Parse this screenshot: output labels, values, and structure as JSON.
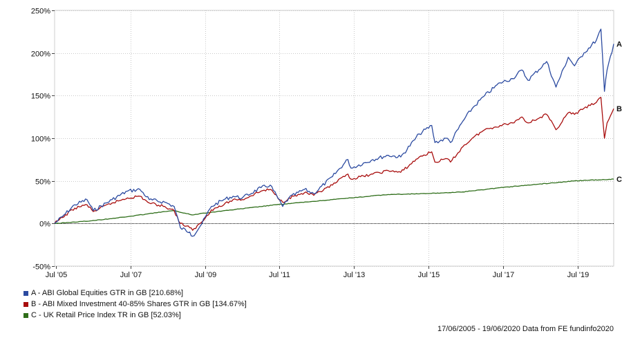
{
  "chart_data": {
    "type": "line",
    "x_range": [
      "2005-06-17",
      "2020-06-19"
    ],
    "ylim": [
      -50,
      250
    ],
    "y_ticks": [
      "250%",
      "200%",
      "150%",
      "100%",
      "50%",
      "0%",
      "-50%"
    ],
    "y_tick_values": [
      250,
      200,
      150,
      100,
      50,
      0,
      -50
    ],
    "x_tick_labels": [
      "Jul '05",
      "Jul '07",
      "Jul '09",
      "Jul '11",
      "Jul '13",
      "Jul '15",
      "Jul '17",
      "Jul '19"
    ],
    "x_tick_dates": [
      "2005-07-01",
      "2007-07-01",
      "2009-07-01",
      "2011-07-01",
      "2013-07-01",
      "2015-07-01",
      "2017-07-01",
      "2019-07-01"
    ],
    "grid": true,
    "series": [
      {
        "name": "A - ABI Global Equities GTR in GB [210.68%]",
        "end_label": "A",
        "color": "#2b4aa0",
        "x": [
          "2005-06-17",
          "2005-09-01",
          "2006-01-01",
          "2006-05-01",
          "2006-07-01",
          "2007-01-01",
          "2007-06-01",
          "2007-10-01",
          "2008-01-01",
          "2008-06-01",
          "2008-09-01",
          "2008-11-01",
          "2009-02-01",
          "2009-03-01",
          "2009-06-01",
          "2009-09-01",
          "2010-01-01",
          "2010-04-01",
          "2010-07-01",
          "2011-01-01",
          "2011-04-01",
          "2011-08-01",
          "2011-10-01",
          "2012-03-01",
          "2012-06-01",
          "2012-12-01",
          "2013-05-01",
          "2013-06-01",
          "2014-01-01",
          "2014-06-01",
          "2014-10-01",
          "2015-04-01",
          "2015-08-01",
          "2015-09-01",
          "2016-01-01",
          "2016-02-01",
          "2016-06-01",
          "2016-09-01",
          "2017-01-01",
          "2017-06-01",
          "2017-10-01",
          "2018-01-01",
          "2018-03-01",
          "2018-09-01",
          "2018-12-01",
          "2019-04-01",
          "2019-06-01",
          "2019-09-01",
          "2020-01-01",
          "2020-02-15",
          "2020-03-20",
          "2020-04-15",
          "2020-06-19"
        ],
        "values": [
          0,
          8,
          22,
          28,
          15,
          28,
          38,
          40,
          28,
          25,
          20,
          -5,
          -10,
          -15,
          0,
          20,
          28,
          32,
          30,
          42,
          45,
          20,
          30,
          40,
          35,
          55,
          75,
          65,
          75,
          80,
          78,
          105,
          115,
          95,
          100,
          95,
          120,
          135,
          150,
          165,
          170,
          180,
          168,
          190,
          160,
          195,
          185,
          200,
          215,
          228,
          155,
          180,
          210.68
        ]
      },
      {
        "name": "B - ABI Mixed Investment 40-85% Shares GTR in GB [134.67%]",
        "end_label": "B",
        "color": "#a80d0d",
        "x": [
          "2005-06-17",
          "2005-09-01",
          "2006-01-01",
          "2006-05-01",
          "2006-07-01",
          "2007-01-01",
          "2007-06-01",
          "2007-10-01",
          "2008-01-01",
          "2008-06-01",
          "2008-09-01",
          "2008-11-01",
          "2009-02-01",
          "2009-03-01",
          "2009-06-01",
          "2009-09-01",
          "2010-01-01",
          "2010-04-01",
          "2010-07-01",
          "2011-01-01",
          "2011-04-01",
          "2011-08-01",
          "2011-10-01",
          "2012-03-01",
          "2012-06-01",
          "2012-12-01",
          "2013-05-01",
          "2013-06-01",
          "2014-01-01",
          "2014-06-01",
          "2014-10-01",
          "2015-04-01",
          "2015-08-01",
          "2015-09-01",
          "2016-01-01",
          "2016-02-01",
          "2016-06-01",
          "2016-09-01",
          "2017-01-01",
          "2017-06-01",
          "2017-10-01",
          "2018-01-01",
          "2018-03-01",
          "2018-09-01",
          "2018-12-01",
          "2019-04-01",
          "2019-06-01",
          "2019-09-01",
          "2020-01-01",
          "2020-02-15",
          "2020-03-20",
          "2020-04-15",
          "2020-06-19"
        ],
        "values": [
          0,
          7,
          18,
          22,
          14,
          24,
          30,
          32,
          24,
          20,
          15,
          0,
          -5,
          -8,
          2,
          16,
          22,
          28,
          28,
          38,
          40,
          25,
          30,
          36,
          33,
          45,
          58,
          52,
          58,
          62,
          60,
          78,
          84,
          72,
          76,
          72,
          90,
          100,
          110,
          115,
          118,
          125,
          118,
          128,
          110,
          130,
          128,
          135,
          142,
          148,
          100,
          118,
          134.67
        ]
      },
      {
        "name": "C - UK Retail Price Index TR in GB [52.03%]",
        "end_label": "C",
        "color": "#2f6e1a",
        "x": [
          "2005-06-17",
          "2006-06-01",
          "2007-06-01",
          "2008-06-01",
          "2008-09-01",
          "2009-03-01",
          "2009-06-01",
          "2010-06-01",
          "2011-06-01",
          "2012-06-01",
          "2013-06-01",
          "2014-06-01",
          "2015-06-01",
          "2016-06-01",
          "2017-06-01",
          "2018-06-01",
          "2019-06-01",
          "2020-06-19"
        ],
        "values": [
          0,
          3,
          8,
          14,
          15,
          10,
          12,
          17,
          22,
          26,
          30,
          34,
          35,
          37,
          42,
          46,
          50,
          52.03
        ]
      }
    ]
  },
  "footer": {
    "text": "17/06/2005 - 19/06/2020 Data from FE fundinfo2020"
  }
}
